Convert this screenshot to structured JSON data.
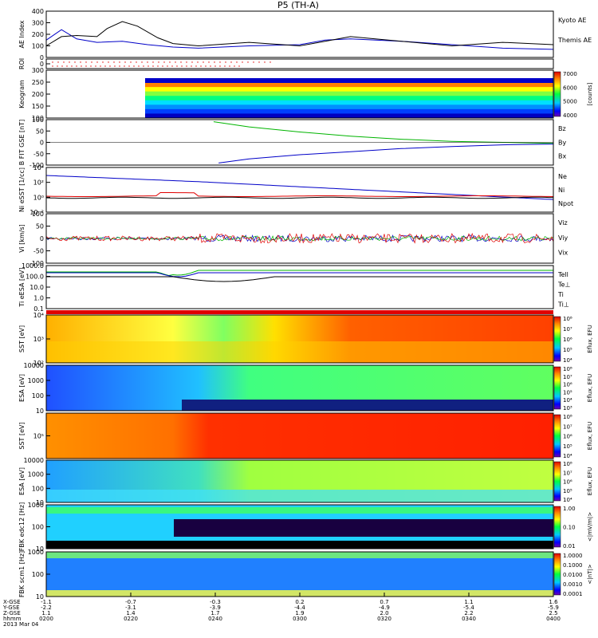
{
  "title": "P5 (TH-A)",
  "colors": {
    "blue": "#0000c8",
    "red": "#e00000",
    "green": "#00b400",
    "black": "#000000"
  },
  "chart_data": [
    {
      "type": "line",
      "panel": "ae",
      "ylabel": "AE Index",
      "yticks": [
        "0",
        "100",
        "200",
        "300",
        "400"
      ],
      "ylim": [
        0,
        400
      ],
      "series": [
        {
          "name": "Kyoto AE",
          "color": "#0000c8",
          "x": [
            0,
            0.03,
            0.06,
            0.1,
            0.15,
            0.2,
            0.25,
            0.3,
            0.4,
            0.5,
            0.55,
            0.6,
            0.7,
            0.8,
            0.9,
            1.0
          ],
          "values": [
            150,
            240,
            160,
            130,
            140,
            110,
            90,
            80,
            100,
            110,
            150,
            160,
            140,
            110,
            80,
            70
          ]
        },
        {
          "name": "Themis AE",
          "color": "#000000",
          "x": [
            0,
            0.03,
            0.06,
            0.1,
            0.12,
            0.15,
            0.18,
            0.22,
            0.25,
            0.3,
            0.4,
            0.5,
            0.55,
            0.6,
            0.7,
            0.8,
            0.9,
            1.0
          ],
          "values": [
            100,
            180,
            190,
            180,
            250,
            310,
            270,
            170,
            120,
            100,
            130,
            100,
            140,
            180,
            140,
            100,
            130,
            110
          ]
        }
      ]
    },
    {
      "type": "heatmap",
      "panel": "roi",
      "ylabel": "ROI",
      "yticks": [
        "0"
      ]
    },
    {
      "type": "heatmap",
      "panel": "keogram",
      "ylabel": "Keogram",
      "yticks": [
        "100",
        "150",
        "200",
        "250",
        "300"
      ],
      "colorbar": {
        "label": "[counts]",
        "ticks": [
          "4000",
          "5000",
          "6000",
          "7000"
        ]
      }
    },
    {
      "type": "line",
      "panel": "bfield",
      "ylabel": "B FIT GSE [nT]",
      "yticks": [
        "-100",
        "-50",
        "0",
        "50",
        "100"
      ],
      "ylim": [
        -110,
        110
      ],
      "series": [
        {
          "name": "Bz",
          "color": "#e00000",
          "x": [
            0,
            1
          ],
          "values": [
            110,
            110
          ]
        },
        {
          "name": "By",
          "color": "#00b400",
          "x": [
            0.33,
            0.4,
            0.5,
            0.6,
            0.7,
            0.8,
            0.9,
            1.0
          ],
          "values": [
            100,
            75,
            50,
            30,
            15,
            5,
            0,
            -5
          ]
        },
        {
          "name": "Bx",
          "color": "#0000c8",
          "x": [
            0.34,
            0.4,
            0.5,
            0.6,
            0.7,
            0.8,
            0.9,
            1.0
          ],
          "values": [
            -100,
            -80,
            -60,
            -45,
            -30,
            -20,
            -12,
            -8
          ]
        }
      ]
    },
    {
      "type": "line",
      "panel": "density",
      "ylabel": "Ni eSST [1/cc]",
      "yticks": [
        "10⁻²",
        "10⁰",
        "10²",
        "10⁴"
      ],
      "series": [
        {
          "name": "Ne",
          "color": "#e00000"
        },
        {
          "name": "Ni",
          "color": "#000000"
        },
        {
          "name": "Npot",
          "color": "#0000c8"
        }
      ]
    },
    {
      "type": "line",
      "panel": "velocity",
      "ylabel": "Vi [km/s]",
      "yticks": [
        "-100",
        "-50",
        "0",
        "50",
        "100"
      ],
      "series": [
        {
          "name": "Viz",
          "color": "#e00000"
        },
        {
          "name": "Viy",
          "color": "#00b400"
        },
        {
          "name": "Vix",
          "color": "#0000c8"
        }
      ]
    },
    {
      "type": "line",
      "panel": "temperature",
      "ylabel": "Ti eESA [eV]",
      "yticks": [
        "0.1",
        "1.0",
        "10.0",
        "100.0",
        "1000.0"
      ],
      "series": [
        {
          "name": "Tell",
          "color": "#000000"
        },
        {
          "name": "Te⊥",
          "color": "#e00000"
        },
        {
          "name": "Ti",
          "color": "#00b400"
        },
        {
          "name": "Ti⊥",
          "color": "#0000c8"
        }
      ]
    },
    {
      "type": "heatmap",
      "panel": "sst_e",
      "ylabel": "SST [eV]",
      "yticks": [
        "10²",
        "10³",
        "10⁴"
      ],
      "colorbar": {
        "label": "Eflux, EFU",
        "ticks": [
          "10⁴",
          "10⁵",
          "10⁶",
          "10⁷",
          "10⁸"
        ]
      }
    },
    {
      "type": "heatmap",
      "panel": "esa_e",
      "ylabel": "ESA [eV]",
      "yticks": [
        "10",
        "100",
        "1000",
        "10000"
      ],
      "colorbar": {
        "label": "Eflux, EFU",
        "ticks": [
          "10³",
          "10⁴",
          "10⁵",
          "10⁶",
          "10⁷",
          "10⁸"
        ]
      }
    },
    {
      "type": "heatmap",
      "panel": "sst_i",
      "ylabel": "SST [eV]",
      "yticks": [
        "10⁵"
      ],
      "colorbar": {
        "label": "Eflux, EFU",
        "ticks": [
          "10⁴",
          "10⁵",
          "10⁶",
          "10⁷",
          "10⁸"
        ]
      }
    },
    {
      "type": "heatmap",
      "panel": "esa_i",
      "ylabel": "ESA [eV]",
      "yticks": [
        "10",
        "100",
        "1000",
        "10000"
      ],
      "colorbar": {
        "label": "Eflux, EFU",
        "ticks": [
          "10⁴",
          "10⁵",
          "10⁶",
          "10⁷",
          "10⁸"
        ]
      }
    },
    {
      "type": "heatmap",
      "panel": "fbk_e",
      "ylabel": "FBK edc12 [Hz]",
      "yticks": [
        "10",
        "100",
        "1000"
      ],
      "colorbar": {
        "label": "<|mV/m|>",
        "ticks": [
          "0.01",
          "0.10",
          "1.00"
        ]
      }
    },
    {
      "type": "heatmap",
      "panel": "fbk_b",
      "ylabel": "FBK scm1 [Hz]",
      "yticks": [
        "10",
        "100",
        "1000"
      ],
      "colorbar": {
        "label": "<|nT|>",
        "ticks": [
          "0.0001",
          "0.0010",
          "0.0100",
          "0.1000",
          "1.0000"
        ]
      }
    }
  ],
  "xaxis": {
    "row_labels": [
      "X-GSE",
      "Y-GSE",
      "Z-GSE",
      "hhmm",
      "2013 Mar 04"
    ],
    "ticks": [
      {
        "x": "-1.1",
        "y": "-2.2",
        "z": "1.1",
        "t": "0200"
      },
      {
        "x": "-0.7",
        "y": "-3.1",
        "z": "1.4",
        "t": "0220"
      },
      {
        "x": "-0.3",
        "y": "-3.9",
        "z": "1.7",
        "t": "0240"
      },
      {
        "x": "0.2",
        "y": "-4.4",
        "z": "1.9",
        "t": "0300"
      },
      {
        "x": "0.7",
        "y": "-4.9",
        "z": "2.0",
        "t": "0320"
      },
      {
        "x": "1.1",
        "y": "-5.4",
        "z": "2.2",
        "t": "0340"
      },
      {
        "x": "1.6",
        "y": "-5.9",
        "z": "2.5",
        "t": "0400"
      }
    ]
  }
}
